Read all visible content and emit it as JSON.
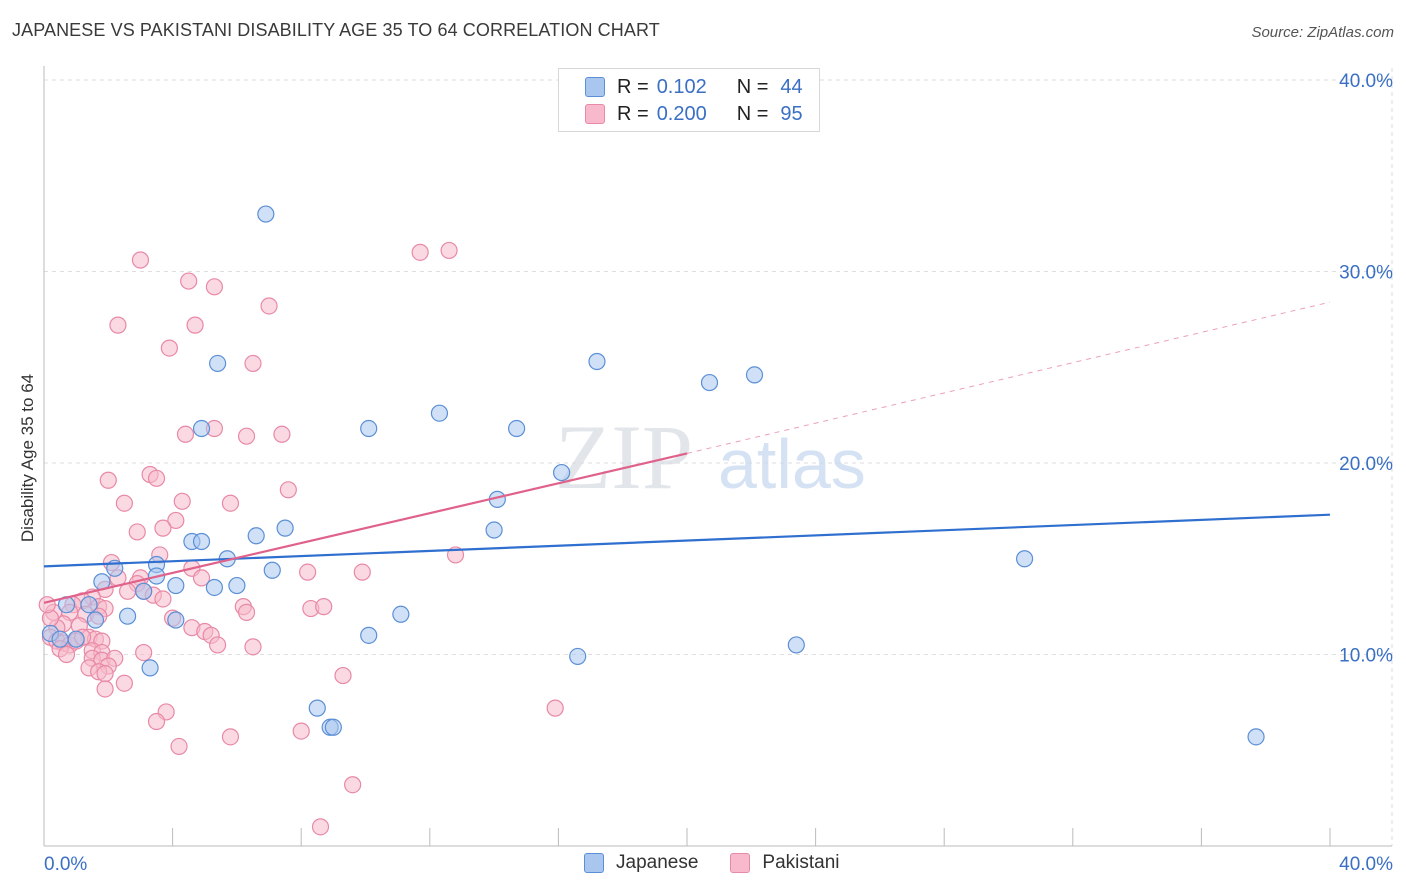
{
  "title": "JAPANESE VS PAKISTANI DISABILITY AGE 35 TO 64 CORRELATION CHART",
  "source": "Source: ZipAtlas.com",
  "watermark": {
    "part1": "ZIP",
    "part2": "atlas"
  },
  "legend": {
    "rows": [
      {
        "r_label": "R =",
        "r_value": "0.102",
        "n_label": "N =",
        "n_value": "44"
      },
      {
        "r_label": "R =",
        "r_value": "0.200",
        "n_label": "N =",
        "n_value": "95"
      }
    ]
  },
  "colors": {
    "japanese_fill": "#a9c6ef",
    "japanese_stroke": "#5b8fd6",
    "japanese_line": "#2f6fcf",
    "pakistani_fill": "#f7b9cb",
    "pakistani_stroke": "#e889a6",
    "pakistani_line": "#e0628b",
    "axis_text": "#3a6fc4",
    "grid": "#dedede"
  },
  "chart_data": {
    "type": "scatter",
    "xlabel": "",
    "ylabel": "Disability Age 35 to 64",
    "xlim": [
      0,
      40
    ],
    "ylim": [
      0,
      40
    ],
    "x_tick_labels": [
      "0.0%",
      "40.0%"
    ],
    "y_tick_labels": [
      "10.0%",
      "20.0%",
      "30.0%",
      "40.0%"
    ],
    "y_ticks": [
      10,
      20,
      30,
      40
    ],
    "grid": true,
    "legend_placement": "top-center",
    "series": [
      {
        "name": "Japanese",
        "color": "#a9c6ef",
        "points": [
          [
            6.9,
            33.0
          ],
          [
            5.4,
            25.2
          ],
          [
            17.2,
            25.3
          ],
          [
            20.7,
            24.2
          ],
          [
            22.1,
            24.6
          ],
          [
            4.9,
            21.8
          ],
          [
            10.1,
            21.8
          ],
          [
            12.3,
            22.6
          ],
          [
            14.7,
            21.8
          ],
          [
            16.1,
            19.5
          ],
          [
            14.1,
            18.1
          ],
          [
            7.5,
            16.6
          ],
          [
            14.0,
            16.5
          ],
          [
            6.6,
            16.2
          ],
          [
            4.6,
            15.9
          ],
          [
            4.9,
            15.9
          ],
          [
            5.7,
            15.0
          ],
          [
            7.1,
            14.4
          ],
          [
            30.5,
            15.0
          ],
          [
            3.5,
            14.7
          ],
          [
            2.2,
            14.5
          ],
          [
            3.5,
            14.1
          ],
          [
            4.1,
            13.6
          ],
          [
            6.0,
            13.6
          ],
          [
            5.3,
            13.5
          ],
          [
            1.8,
            13.8
          ],
          [
            3.1,
            13.3
          ],
          [
            0.7,
            12.6
          ],
          [
            1.4,
            12.6
          ],
          [
            11.1,
            12.1
          ],
          [
            4.1,
            11.8
          ],
          [
            2.6,
            12.0
          ],
          [
            1.6,
            11.8
          ],
          [
            10.1,
            11.0
          ],
          [
            0.2,
            11.1
          ],
          [
            0.5,
            10.8
          ],
          [
            1.0,
            10.8
          ],
          [
            16.6,
            9.9
          ],
          [
            23.4,
            10.5
          ],
          [
            3.3,
            9.3
          ],
          [
            8.5,
            7.2
          ],
          [
            8.9,
            6.2
          ],
          [
            9.0,
            6.2
          ],
          [
            37.7,
            5.7
          ]
        ],
        "trend": {
          "x": [
            0,
            40
          ],
          "y": [
            14.6,
            17.3
          ],
          "style": "solid"
        }
      },
      {
        "name": "Pakistani",
        "color": "#f7b9cb",
        "points": [
          [
            3.0,
            30.6
          ],
          [
            4.5,
            29.5
          ],
          [
            5.3,
            29.2
          ],
          [
            11.7,
            31.0
          ],
          [
            12.6,
            31.1
          ],
          [
            7.0,
            28.2
          ],
          [
            2.3,
            27.2
          ],
          [
            4.7,
            27.2
          ],
          [
            3.9,
            26.0
          ],
          [
            6.5,
            25.2
          ],
          [
            4.4,
            21.5
          ],
          [
            5.3,
            21.8
          ],
          [
            6.3,
            21.4
          ],
          [
            7.4,
            21.5
          ],
          [
            2.0,
            19.1
          ],
          [
            3.3,
            19.4
          ],
          [
            3.5,
            19.2
          ],
          [
            7.6,
            18.6
          ],
          [
            2.5,
            17.9
          ],
          [
            4.3,
            18.0
          ],
          [
            5.8,
            17.9
          ],
          [
            4.1,
            17.0
          ],
          [
            3.7,
            16.6
          ],
          [
            2.9,
            16.4
          ],
          [
            3.6,
            15.2
          ],
          [
            12.8,
            15.2
          ],
          [
            2.1,
            14.8
          ],
          [
            4.6,
            14.5
          ],
          [
            8.2,
            14.3
          ],
          [
            9.9,
            14.3
          ],
          [
            2.3,
            14.0
          ],
          [
            3.0,
            14.0
          ],
          [
            4.9,
            14.0
          ],
          [
            2.9,
            13.7
          ],
          [
            1.9,
            13.4
          ],
          [
            2.6,
            13.3
          ],
          [
            3.1,
            13.3
          ],
          [
            3.4,
            13.1
          ],
          [
            3.7,
            12.9
          ],
          [
            1.5,
            13.0
          ],
          [
            1.2,
            12.8
          ],
          [
            0.9,
            12.6
          ],
          [
            1.7,
            12.5
          ],
          [
            1.9,
            12.4
          ],
          [
            6.2,
            12.5
          ],
          [
            8.3,
            12.4
          ],
          [
            8.7,
            12.5
          ],
          [
            6.3,
            12.2
          ],
          [
            0.8,
            12.2
          ],
          [
            1.3,
            12.1
          ],
          [
            1.7,
            12.0
          ],
          [
            4.0,
            11.9
          ],
          [
            0.6,
            11.6
          ],
          [
            1.1,
            11.5
          ],
          [
            0.4,
            11.4
          ],
          [
            4.6,
            11.4
          ],
          [
            5.0,
            11.2
          ],
          [
            5.2,
            11.0
          ],
          [
            1.4,
            10.9
          ],
          [
            1.6,
            10.8
          ],
          [
            1.8,
            10.7
          ],
          [
            0.2,
            10.9
          ],
          [
            0.4,
            10.7
          ],
          [
            0.6,
            10.6
          ],
          [
            0.8,
            10.5
          ],
          [
            1.0,
            10.7
          ],
          [
            1.2,
            10.9
          ],
          [
            5.4,
            10.5
          ],
          [
            6.5,
            10.4
          ],
          [
            1.5,
            10.2
          ],
          [
            1.8,
            10.1
          ],
          [
            0.5,
            10.3
          ],
          [
            0.7,
            10.0
          ],
          [
            3.1,
            10.1
          ],
          [
            1.5,
            9.8
          ],
          [
            1.8,
            9.7
          ],
          [
            2.2,
            9.8
          ],
          [
            2.0,
            9.4
          ],
          [
            1.4,
            9.3
          ],
          [
            1.7,
            9.1
          ],
          [
            1.9,
            9.0
          ],
          [
            9.3,
            8.9
          ],
          [
            2.5,
            8.5
          ],
          [
            1.9,
            8.2
          ],
          [
            15.9,
            7.2
          ],
          [
            3.8,
            7.0
          ],
          [
            3.5,
            6.5
          ],
          [
            5.8,
            5.7
          ],
          [
            8.0,
            6.0
          ],
          [
            4.2,
            5.2
          ],
          [
            9.6,
            3.2
          ],
          [
            8.6,
            1.0
          ],
          [
            0.3,
            12.2
          ],
          [
            0.2,
            11.9
          ],
          [
            0.1,
            12.6
          ]
        ],
        "trend": {
          "x": [
            0,
            20
          ],
          "y": [
            12.7,
            20.5
          ],
          "style": "solid",
          "extended": {
            "x": [
              20,
              40
            ],
            "y": [
              20.5,
              28.4
            ],
            "style": "dashed"
          }
        }
      }
    ]
  }
}
